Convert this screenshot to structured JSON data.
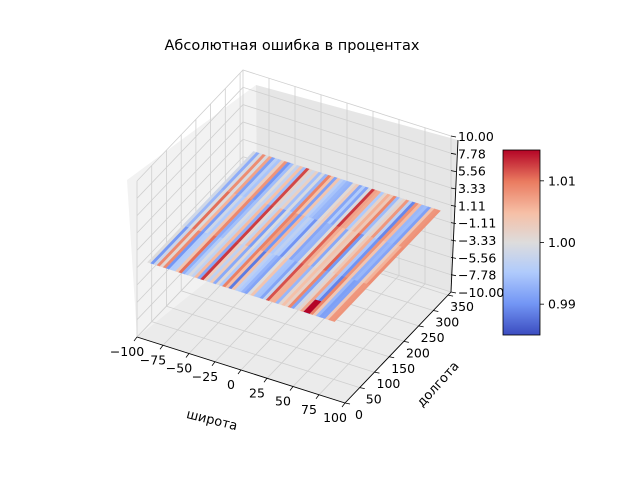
{
  "chart_data": {
    "type": "surface3d",
    "title": "Абсолютная ошибка в процентах",
    "xlabel": "широта",
    "ylabel": "долгота",
    "zlabel": "",
    "xlim": [
      -100,
      100
    ],
    "ylim": [
      0,
      360
    ],
    "zlim": [
      -10,
      10
    ],
    "x_ticks": [
      "−100",
      "−75",
      "−50",
      "−25",
      "0",
      "25",
      "50",
      "75",
      "100"
    ],
    "y_ticks": [
      "0",
      "50",
      "100",
      "150",
      "200",
      "250",
      "300",
      "350"
    ],
    "z_ticks": [
      "−10.00",
      "−7.78",
      "−5.56",
      "−3.33",
      "−1.11",
      "1.11",
      "3.33",
      "5.56",
      "7.78",
      "10.00"
    ],
    "colorbar": {
      "colormap": "coolwarm",
      "min": 0.985,
      "max": 1.015,
      "ticks": [
        "0.99",
        "1.00",
        "1.01"
      ],
      "colors": [
        "#3b4cc0",
        "#7396f5",
        "#b0cbfc",
        "#dddcdc",
        "#f6bfa6",
        "#ea7b60",
        "#b40426"
      ]
    },
    "surface": {
      "lat_range": [
        -90,
        90
      ],
      "lon_range": [
        0,
        360
      ],
      "z_value": 0,
      "color_value_range": [
        0.985,
        1.015
      ]
    },
    "grid": true
  }
}
